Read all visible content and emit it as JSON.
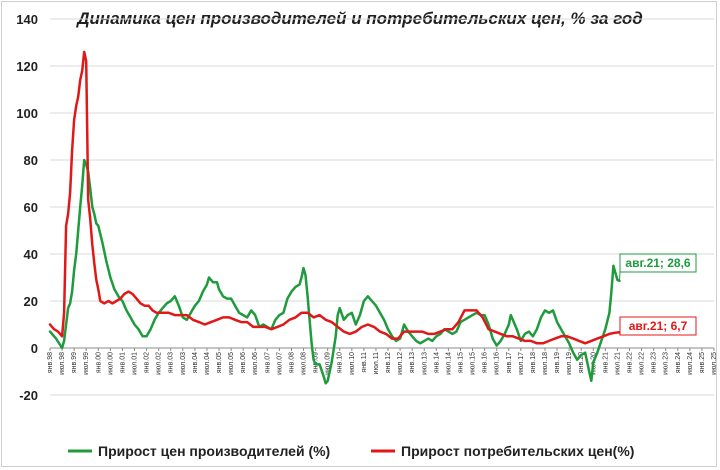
{
  "chart_data": {
    "type": "line",
    "title": "Динамика цен производителей и потребительских цен, % за год",
    "xlabel": "",
    "ylabel": "",
    "ylim": [
      -20,
      140
    ],
    "yticks": [
      "-20",
      "0",
      "20",
      "40",
      "60",
      "80",
      "100",
      "120",
      "140"
    ],
    "grid": "horizontal",
    "legend_position": "bottom",
    "x_tick_labels": [
      "янв.98",
      "июл.98",
      "янв.99",
      "июл.99",
      "янв.00",
      "июл.00",
      "янв.01",
      "июл.01",
      "янв.02",
      "июл.02",
      "янв.03",
      "июл.03",
      "янв.04",
      "июл.04",
      "янв.05",
      "июл.05",
      "янв.06",
      "июл.06",
      "янв.07",
      "июл.07",
      "янв.08",
      "июл.08",
      "янв.09",
      "июл.09",
      "янв.10",
      "июл.10",
      "янв.11",
      "июл.11",
      "янв.12",
      "июл.12",
      "янв.13",
      "июл.13",
      "янв.14",
      "июл.14",
      "янв.15",
      "июл.15",
      "янв.16",
      "июл.16",
      "янв.17",
      "июл.17",
      "янв.18",
      "июл.18",
      "янв.19",
      "июл.19",
      "янв.20",
      "июл.20",
      "янв.21",
      "июл.21",
      "янв.22",
      "июл.22",
      "янв.23",
      "июл.23",
      "янв.24",
      "июл.24",
      "янв.25",
      "июл.25"
    ],
    "x_start": "1998-01",
    "x_end": "2025-07",
    "series": [
      {
        "name": "Прирост цен производителей (%)",
        "color": "#1e9b3c",
        "points": [
          [
            "1998-01",
            7
          ],
          [
            "1998-04",
            4
          ],
          [
            "1998-07",
            0
          ],
          [
            "1998-08",
            3
          ],
          [
            "1998-09",
            10
          ],
          [
            "1998-10",
            17
          ],
          [
            "1998-11",
            19
          ],
          [
            "1998-12",
            24
          ],
          [
            "1999-01",
            33
          ],
          [
            "1999-02",
            40
          ],
          [
            "1999-03",
            50
          ],
          [
            "1999-04",
            60
          ],
          [
            "1999-05",
            69
          ],
          [
            "1999-06",
            80
          ],
          [
            "1999-07",
            78
          ],
          [
            "1999-08",
            75
          ],
          [
            "1999-09",
            68
          ],
          [
            "1999-10",
            60
          ],
          [
            "1999-11",
            57
          ],
          [
            "1999-12",
            53
          ],
          [
            "2000-01",
            52
          ],
          [
            "2000-03",
            45
          ],
          [
            "2000-05",
            37
          ],
          [
            "2000-07",
            30
          ],
          [
            "2000-09",
            25
          ],
          [
            "2000-11",
            22
          ],
          [
            "2001-01",
            20
          ],
          [
            "2001-03",
            16
          ],
          [
            "2001-05",
            13
          ],
          [
            "2001-07",
            10
          ],
          [
            "2001-09",
            8
          ],
          [
            "2001-11",
            5
          ],
          [
            "2002-01",
            5
          ],
          [
            "2002-03",
            8
          ],
          [
            "2002-05",
            12
          ],
          [
            "2002-07",
            15
          ],
          [
            "2002-09",
            17
          ],
          [
            "2002-11",
            19
          ],
          [
            "2003-01",
            20
          ],
          [
            "2003-03",
            22
          ],
          [
            "2003-05",
            18
          ],
          [
            "2003-07",
            13
          ],
          [
            "2003-09",
            12
          ],
          [
            "2003-11",
            15
          ],
          [
            "2004-01",
            18
          ],
          [
            "2004-03",
            20
          ],
          [
            "2004-05",
            24
          ],
          [
            "2004-07",
            27
          ],
          [
            "2004-08",
            30
          ],
          [
            "2004-10",
            28
          ],
          [
            "2004-12",
            28
          ],
          [
            "2005-01",
            25
          ],
          [
            "2005-03",
            22
          ],
          [
            "2005-05",
            21
          ],
          [
            "2005-07",
            21
          ],
          [
            "2005-09",
            18
          ],
          [
            "2005-11",
            15
          ],
          [
            "2006-01",
            14
          ],
          [
            "2006-03",
            13
          ],
          [
            "2006-05",
            16
          ],
          [
            "2006-07",
            14
          ],
          [
            "2006-09",
            9
          ],
          [
            "2006-11",
            10
          ],
          [
            "2007-01",
            9
          ],
          [
            "2007-03",
            8
          ],
          [
            "2007-05",
            12
          ],
          [
            "2007-07",
            14
          ],
          [
            "2007-09",
            15
          ],
          [
            "2007-11",
            21
          ],
          [
            "2008-01",
            24
          ],
          [
            "2008-03",
            26
          ],
          [
            "2008-05",
            27
          ],
          [
            "2008-06",
            30
          ],
          [
            "2008-07",
            34
          ],
          [
            "2008-08",
            31
          ],
          [
            "2008-09",
            22
          ],
          [
            "2008-10",
            12
          ],
          [
            "2008-11",
            2
          ],
          [
            "2008-12",
            -5
          ],
          [
            "2009-01",
            -7
          ],
          [
            "2009-03",
            -7
          ],
          [
            "2009-05",
            -12
          ],
          [
            "2009-06",
            -15
          ],
          [
            "2009-07",
            -14
          ],
          [
            "2009-09",
            -6
          ],
          [
            "2009-11",
            5
          ],
          [
            "2009-12",
            14
          ],
          [
            "2010-01",
            17
          ],
          [
            "2010-03",
            12
          ],
          [
            "2010-05",
            14
          ],
          [
            "2010-07",
            15
          ],
          [
            "2010-09",
            10
          ],
          [
            "2010-11",
            14
          ],
          [
            "2011-01",
            20
          ],
          [
            "2011-03",
            22
          ],
          [
            "2011-05",
            20
          ],
          [
            "2011-07",
            18
          ],
          [
            "2011-09",
            15
          ],
          [
            "2011-11",
            12
          ],
          [
            "2012-01",
            8
          ],
          [
            "2012-03",
            5
          ],
          [
            "2012-05",
            3
          ],
          [
            "2012-07",
            4
          ],
          [
            "2012-09",
            10
          ],
          [
            "2012-11",
            7
          ],
          [
            "2013-01",
            5
          ],
          [
            "2013-03",
            3
          ],
          [
            "2013-05",
            2
          ],
          [
            "2013-07",
            3
          ],
          [
            "2013-09",
            4
          ],
          [
            "2013-11",
            3
          ],
          [
            "2014-01",
            5
          ],
          [
            "2014-03",
            6
          ],
          [
            "2014-05",
            8
          ],
          [
            "2014-07",
            7
          ],
          [
            "2014-09",
            6
          ],
          [
            "2014-11",
            7
          ],
          [
            "2015-01",
            11
          ],
          [
            "2015-03",
            12
          ],
          [
            "2015-05",
            13
          ],
          [
            "2015-07",
            14
          ],
          [
            "2015-09",
            15
          ],
          [
            "2015-11",
            14
          ],
          [
            "2016-01",
            14
          ],
          [
            "2016-03",
            10
          ],
          [
            "2016-05",
            4
          ],
          [
            "2016-07",
            1
          ],
          [
            "2016-09",
            3
          ],
          [
            "2016-11",
            6
          ],
          [
            "2017-01",
            10
          ],
          [
            "2017-02",
            14
          ],
          [
            "2017-03",
            12
          ],
          [
            "2017-05",
            8
          ],
          [
            "2017-07",
            3
          ],
          [
            "2017-09",
            6
          ],
          [
            "2017-11",
            7
          ],
          [
            "2018-01",
            5
          ],
          [
            "2018-03",
            8
          ],
          [
            "2018-05",
            13
          ],
          [
            "2018-07",
            16
          ],
          [
            "2018-09",
            15
          ],
          [
            "2018-11",
            16
          ],
          [
            "2019-01",
            11
          ],
          [
            "2019-03",
            8
          ],
          [
            "2019-05",
            5
          ],
          [
            "2019-07",
            2
          ],
          [
            "2019-09",
            -2
          ],
          [
            "2019-11",
            -5
          ],
          [
            "2020-01",
            -3
          ],
          [
            "2020-03",
            -2
          ],
          [
            "2020-05",
            -10
          ],
          [
            "2020-06",
            -14
          ],
          [
            "2020-07",
            -6
          ],
          [
            "2020-09",
            -2
          ],
          [
            "2020-11",
            3
          ],
          [
            "2021-01",
            8
          ],
          [
            "2021-03",
            15
          ],
          [
            "2021-04",
            24
          ],
          [
            "2021-05",
            35
          ],
          [
            "2021-06",
            32
          ],
          [
            "2021-07",
            29
          ],
          [
            "2021-08",
            28.6
          ]
        ]
      },
      {
        "name": "Прирост потребительских цен(%)",
        "color": "#e01818",
        "points": [
          [
            "1998-01",
            10
          ],
          [
            "1998-03",
            8
          ],
          [
            "1998-05",
            7
          ],
          [
            "1998-07",
            5
          ],
          [
            "1998-08",
            15
          ],
          [
            "1998-09",
            52
          ],
          [
            "1998-10",
            57
          ],
          [
            "1998-11",
            66
          ],
          [
            "1998-12",
            84
          ],
          [
            "1999-01",
            97
          ],
          [
            "1999-02",
            103
          ],
          [
            "1999-03",
            107
          ],
          [
            "1999-04",
            114
          ],
          [
            "1999-05",
            118
          ],
          [
            "1999-06",
            126
          ],
          [
            "1999-07",
            122
          ],
          [
            "1999-08",
            63
          ],
          [
            "1999-09",
            55
          ],
          [
            "1999-10",
            44
          ],
          [
            "1999-11",
            36
          ],
          [
            "1999-12",
            29
          ],
          [
            "2000-01",
            25
          ],
          [
            "2000-02",
            20
          ],
          [
            "2000-04",
            19
          ],
          [
            "2000-06",
            20
          ],
          [
            "2000-08",
            19
          ],
          [
            "2000-10",
            20
          ],
          [
            "2000-12",
            21
          ],
          [
            "2001-02",
            23
          ],
          [
            "2001-04",
            24
          ],
          [
            "2001-06",
            23
          ],
          [
            "2001-08",
            21
          ],
          [
            "2001-10",
            19
          ],
          [
            "2001-12",
            18
          ],
          [
            "2002-02",
            18
          ],
          [
            "2002-04",
            16
          ],
          [
            "2002-06",
            15
          ],
          [
            "2002-08",
            15
          ],
          [
            "2002-10",
            15
          ],
          [
            "2002-12",
            15
          ],
          [
            "2003-03",
            14
          ],
          [
            "2003-06",
            14
          ],
          [
            "2003-09",
            14
          ],
          [
            "2003-12",
            12
          ],
          [
            "2004-03",
            11
          ],
          [
            "2004-06",
            10
          ],
          [
            "2004-09",
            11
          ],
          [
            "2004-12",
            12
          ],
          [
            "2005-03",
            13
          ],
          [
            "2005-06",
            13
          ],
          [
            "2005-09",
            12
          ],
          [
            "2005-12",
            11
          ],
          [
            "2006-03",
            11
          ],
          [
            "2006-06",
            9
          ],
          [
            "2006-09",
            9
          ],
          [
            "2006-12",
            9
          ],
          [
            "2007-03",
            8
          ],
          [
            "2007-06",
            9
          ],
          [
            "2007-09",
            10
          ],
          [
            "2007-12",
            12
          ],
          [
            "2008-03",
            13
          ],
          [
            "2008-06",
            15
          ],
          [
            "2008-09",
            15
          ],
          [
            "2008-12",
            13
          ],
          [
            "2009-03",
            14
          ],
          [
            "2009-06",
            12
          ],
          [
            "2009-09",
            11
          ],
          [
            "2009-12",
            9
          ],
          [
            "2010-03",
            7
          ],
          [
            "2010-06",
            6
          ],
          [
            "2010-09",
            7
          ],
          [
            "2010-12",
            9
          ],
          [
            "2011-03",
            10
          ],
          [
            "2011-06",
            9
          ],
          [
            "2011-09",
            7
          ],
          [
            "2011-12",
            6
          ],
          [
            "2012-03",
            4
          ],
          [
            "2012-06",
            4
          ],
          [
            "2012-09",
            7
          ],
          [
            "2012-12",
            7
          ],
          [
            "2013-03",
            7
          ],
          [
            "2013-06",
            7
          ],
          [
            "2013-09",
            6
          ],
          [
            "2013-12",
            6
          ],
          [
            "2014-03",
            7
          ],
          [
            "2014-06",
            8
          ],
          [
            "2014-09",
            8
          ],
          [
            "2014-12",
            11
          ],
          [
            "2015-03",
            16
          ],
          [
            "2015-06",
            16
          ],
          [
            "2015-09",
            16
          ],
          [
            "2015-12",
            13
          ],
          [
            "2016-03",
            8
          ],
          [
            "2016-06",
            7
          ],
          [
            "2016-09",
            6
          ],
          [
            "2016-12",
            5
          ],
          [
            "2017-03",
            5
          ],
          [
            "2017-06",
            4
          ],
          [
            "2017-09",
            3
          ],
          [
            "2017-12",
            3
          ],
          [
            "2018-03",
            2
          ],
          [
            "2018-06",
            2
          ],
          [
            "2018-09",
            3
          ],
          [
            "2018-12",
            4
          ],
          [
            "2019-03",
            5
          ],
          [
            "2019-06",
            5
          ],
          [
            "2019-09",
            4
          ],
          [
            "2019-12",
            3
          ],
          [
            "2020-03",
            2
          ],
          [
            "2020-06",
            3
          ],
          [
            "2020-09",
            4
          ],
          [
            "2020-12",
            5
          ],
          [
            "2021-03",
            6
          ],
          [
            "2021-06",
            6.5
          ],
          [
            "2021-08",
            6.7
          ]
        ]
      }
    ],
    "annotations": [
      {
        "label": "авг.21; 28,6",
        "series": 0,
        "point": [
          "2021-08",
          28.6
        ]
      },
      {
        "label": "авг.21; 6,7",
        "series": 1,
        "point": [
          "2021-08",
          6.7
        ]
      }
    ]
  }
}
